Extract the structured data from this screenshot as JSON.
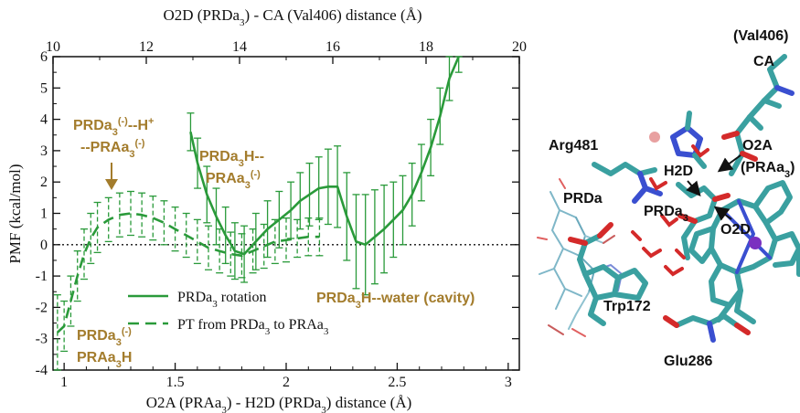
{
  "colors": {
    "series": "#2a9a3a",
    "annotation": "#a37c2c",
    "axis": "#111111",
    "carbon": "#3aa0a0",
    "oxygen": "#d42a2a",
    "nitrogen": "#3a4fd0",
    "hydrogen": "#e8e8e8",
    "metal": "#7a30c0",
    "ion": "#e8a0a0"
  },
  "chart_data": {
    "type": "line",
    "xlabel": "O2A (PRAa",
    "xlabel_sub": "3",
    "xlabel_tail": ") - H2D (PRDa",
    "xlabel_sub2": "3",
    "xlabel_end": ") distance (Å)",
    "x2label": "O2D (PRDa",
    "x2label_sub": "3",
    "x2label_tail": ") - CA (Val406) distance (Å)",
    "ylabel": "PMF (kcal/mol)",
    "xlim": [
      0.95,
      3.05
    ],
    "x2lim": [
      10,
      20
    ],
    "ylim": [
      -4,
      6
    ],
    "xticks": [
      1,
      1.5,
      2,
      2.5,
      3
    ],
    "xtick_labels": [
      "1",
      "1.5",
      "2",
      "2.5",
      "3"
    ],
    "x2ticks": [
      10,
      12,
      14,
      16,
      18,
      20
    ],
    "x2tick_labels": [
      "10",
      "12",
      "14",
      "16",
      "18",
      "20"
    ],
    "yticks": [
      -4,
      -3,
      -2,
      -1,
      0,
      1,
      2,
      3,
      4,
      5,
      6
    ],
    "ytick_labels": [
      "-4",
      "-3",
      "-2",
      "-1",
      "0",
      "1",
      "2",
      "3",
      "4",
      "5",
      "6"
    ],
    "zero_line": true,
    "series": [
      {
        "name": "PRDa",
        "name_sub": "3",
        "name_tail": " rotation",
        "axis": "top",
        "style": "solid",
        "x": [
          12.95,
          13.1,
          13.3,
          13.5,
          13.7,
          13.9,
          14.1,
          14.35,
          14.6,
          14.85,
          15.1,
          15.3,
          15.5,
          15.7,
          15.9,
          16.1,
          16.3,
          16.5,
          16.7,
          16.9,
          17.1,
          17.3,
          17.5,
          17.7,
          17.9,
          18.1,
          18.3,
          18.5,
          18.7
        ],
        "y": [
          3.6,
          2.6,
          1.6,
          0.9,
          0.3,
          -0.2,
          -0.3,
          0.1,
          0.5,
          0.8,
          1.1,
          1.4,
          1.6,
          1.8,
          1.85,
          1.85,
          0.9,
          0.1,
          0.0,
          0.25,
          0.5,
          0.8,
          1.1,
          1.6,
          2.3,
          3.1,
          4.1,
          5.3,
          6.0
        ],
        "err": [
          0.6,
          0.8,
          0.9,
          0.9,
          0.9,
          0.9,
          0.9,
          0.9,
          0.9,
          0.9,
          0.9,
          0.9,
          1.0,
          1.0,
          1.2,
          1.3,
          1.4,
          1.5,
          1.6,
          1.5,
          1.4,
          1.2,
          1.1,
          1.0,
          0.9,
          0.9,
          0.9,
          0.7,
          0.5
        ]
      },
      {
        "name": "PT from PRDa",
        "name_sub": "3",
        "name_tail": " to PRAa",
        "name_sub2": "3",
        "axis": "bottom",
        "style": "dashed",
        "x": [
          0.97,
          1.0,
          1.03,
          1.06,
          1.09,
          1.12,
          1.15,
          1.2,
          1.25,
          1.3,
          1.35,
          1.4,
          1.45,
          1.5,
          1.55,
          1.6,
          1.65,
          1.7,
          1.75,
          1.8,
          1.85,
          1.9,
          1.95,
          2.0,
          2.05,
          2.1,
          2.15
        ],
        "y": [
          -2.8,
          -2.6,
          -1.8,
          -1.0,
          -0.3,
          0.2,
          0.55,
          0.8,
          0.95,
          1.0,
          0.95,
          0.85,
          0.7,
          0.5,
          0.3,
          0.1,
          -0.1,
          -0.2,
          -0.3,
          -0.35,
          -0.2,
          -0.05,
          0.1,
          0.15,
          0.2,
          0.25,
          0.25
        ],
        "err": [
          1.2,
          0.8,
          0.8,
          0.8,
          0.8,
          0.8,
          0.8,
          0.7,
          0.7,
          0.7,
          0.7,
          0.7,
          0.7,
          0.7,
          0.7,
          0.7,
          0.7,
          0.7,
          0.7,
          0.7,
          0.7,
          0.7,
          0.7,
          0.7,
          0.6,
          0.6,
          0.6
        ]
      }
    ],
    "annotations": [
      {
        "parts": [
          "PRDa",
          "3",
          "(-)",
          "--H",
          "+"
        ],
        "line2": [
          "--PRAa",
          "3",
          "(-)"
        ]
      },
      {
        "parts": [
          "PRDa",
          "3",
          "H--"
        ],
        "line2": [
          "PRAa",
          "3",
          "(-)"
        ]
      },
      {
        "parts": [
          "PRDa",
          "3",
          "H--water (cavity)"
        ]
      },
      {
        "parts": [
          "PRDa",
          "3",
          "(-)"
        ],
        "line2": [
          "PRAa",
          "3",
          "H"
        ]
      }
    ]
  },
  "molecule_labels": {
    "val406": "(Val406)",
    "ca": "CA",
    "arg481": "Arg481",
    "o2a": "O2A",
    "praa3_pre": "(PRAa",
    "praa3_sub": "3",
    "praa3_post": ")",
    "h2d": "H2D",
    "prda": "PRDa",
    "prda3_pre": "PRDa",
    "prda3_sub": "3",
    "o2d": "O2D",
    "trp172": "Trp172",
    "glu286": "Glu286"
  }
}
